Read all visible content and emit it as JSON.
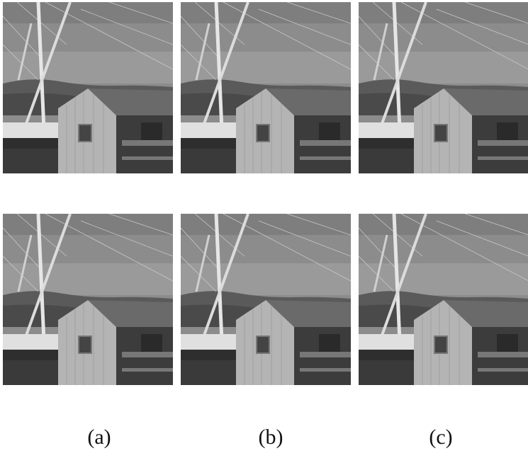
{
  "labels": [
    "(a)",
    "(b)",
    "(c)"
  ]
}
